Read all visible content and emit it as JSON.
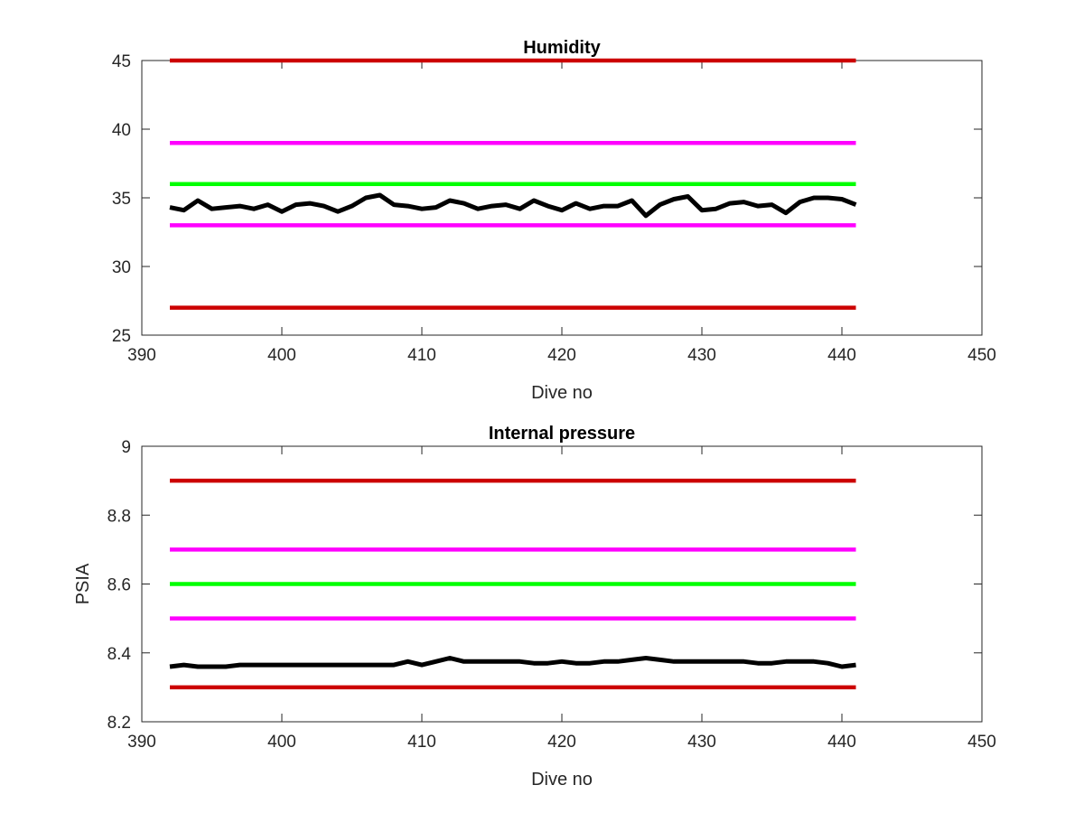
{
  "chart_data": [
    {
      "type": "line",
      "title": "Humidity",
      "xlabel": "Dive no",
      "ylabel": "",
      "xlim": [
        390,
        450
      ],
      "ylim": [
        25,
        45
      ],
      "xticks": [
        390,
        400,
        410,
        420,
        430,
        440,
        450
      ],
      "yticks": [
        25,
        30,
        35,
        40,
        45
      ],
      "grid": false,
      "series": [
        {
          "color": "#cc0000",
          "x": [
            392,
            441
          ],
          "y": [
            45,
            45
          ]
        },
        {
          "color": "#ff00ff",
          "x": [
            392,
            441
          ],
          "y": [
            39,
            39
          ]
        },
        {
          "color": "#00ff00",
          "x": [
            392,
            441
          ],
          "y": [
            36,
            36
          ]
        },
        {
          "color": "#ff00ff",
          "x": [
            392,
            441
          ],
          "y": [
            33,
            33
          ]
        },
        {
          "color": "#cc0000",
          "x": [
            392,
            441
          ],
          "y": [
            27,
            27
          ]
        },
        {
          "color": "#000000",
          "x": [
            392,
            393,
            394,
            395,
            396,
            397,
            398,
            399,
            400,
            401,
            402,
            403,
            404,
            405,
            406,
            407,
            408,
            409,
            410,
            411,
            412,
            413,
            414,
            415,
            416,
            417,
            418,
            419,
            420,
            421,
            422,
            423,
            424,
            425,
            426,
            427,
            428,
            429,
            430,
            431,
            432,
            433,
            434,
            435,
            436,
            437,
            438,
            439,
            440,
            441
          ],
          "y": [
            34.3,
            34.1,
            34.8,
            34.2,
            34.3,
            34.4,
            34.2,
            34.5,
            34.0,
            34.5,
            34.6,
            34.4,
            34.0,
            34.4,
            35.0,
            35.2,
            34.5,
            34.4,
            34.2,
            34.3,
            34.8,
            34.6,
            34.2,
            34.4,
            34.5,
            34.2,
            34.8,
            34.4,
            34.1,
            34.6,
            34.2,
            34.4,
            34.4,
            34.8,
            33.7,
            34.5,
            34.9,
            35.1,
            34.1,
            34.2,
            34.6,
            34.7,
            34.4,
            34.5,
            33.9,
            34.7,
            35.0,
            35.0,
            34.9,
            34.5
          ]
        }
      ]
    },
    {
      "type": "line",
      "title": "Internal pressure",
      "xlabel": "Dive no",
      "ylabel": "PSIA",
      "xlim": [
        390,
        450
      ],
      "ylim": [
        8.2,
        9.0
      ],
      "xticks": [
        390,
        400,
        410,
        420,
        430,
        440,
        450
      ],
      "yticks": [
        8.2,
        8.4,
        8.6,
        8.8,
        9
      ],
      "grid": false,
      "series": [
        {
          "color": "#cc0000",
          "x": [
            392,
            441
          ],
          "y": [
            8.9,
            8.9
          ]
        },
        {
          "color": "#ff00ff",
          "x": [
            392,
            441
          ],
          "y": [
            8.7,
            8.7
          ]
        },
        {
          "color": "#00ff00",
          "x": [
            392,
            441
          ],
          "y": [
            8.6,
            8.6
          ]
        },
        {
          "color": "#ff00ff",
          "x": [
            392,
            441
          ],
          "y": [
            8.5,
            8.5
          ]
        },
        {
          "color": "#cc0000",
          "x": [
            392,
            441
          ],
          "y": [
            8.3,
            8.3
          ]
        },
        {
          "color": "#000000",
          "x": [
            392,
            393,
            394,
            395,
            396,
            397,
            398,
            399,
            400,
            401,
            402,
            403,
            404,
            405,
            406,
            407,
            408,
            409,
            410,
            411,
            412,
            413,
            414,
            415,
            416,
            417,
            418,
            419,
            420,
            421,
            422,
            423,
            424,
            425,
            426,
            427,
            428,
            429,
            430,
            431,
            432,
            433,
            434,
            435,
            436,
            437,
            438,
            439,
            440,
            441
          ],
          "y": [
            8.36,
            8.365,
            8.36,
            8.36,
            8.36,
            8.365,
            8.365,
            8.365,
            8.365,
            8.365,
            8.365,
            8.365,
            8.365,
            8.365,
            8.365,
            8.365,
            8.365,
            8.375,
            8.365,
            8.375,
            8.385,
            8.375,
            8.375,
            8.375,
            8.375,
            8.375,
            8.37,
            8.37,
            8.375,
            8.37,
            8.37,
            8.375,
            8.375,
            8.38,
            8.385,
            8.38,
            8.375,
            8.375,
            8.375,
            8.375,
            8.375,
            8.375,
            8.37,
            8.37,
            8.375,
            8.375,
            8.375,
            8.37,
            8.36,
            8.365
          ]
        }
      ]
    }
  ]
}
